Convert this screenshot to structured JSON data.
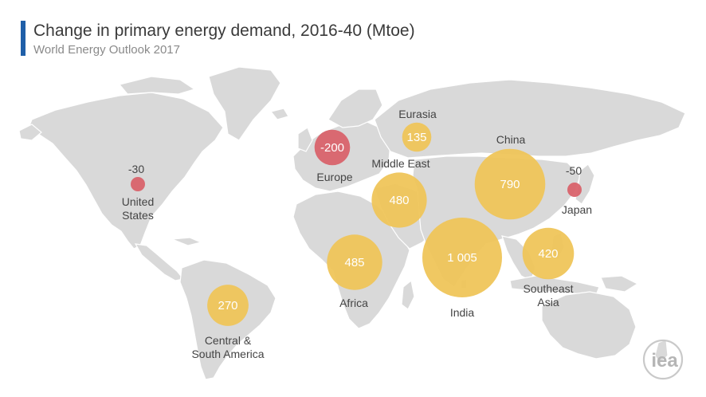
{
  "header": {
    "title": "Change in primary energy demand, 2016-40 (Mtoe)",
    "subtitle": "World Energy Outlook 2017"
  },
  "colors": {
    "increase": "#efc55a",
    "decrease": "#d9636b",
    "land": "#d9d9d9",
    "accent_bar": "#1f5fa8"
  },
  "map": {
    "regions": [
      {
        "id": "united-states",
        "value": "-30",
        "value_num": -30,
        "label_lines": [
          "United",
          "States"
        ],
        "kind": "decrease"
      },
      {
        "id": "central-south-america",
        "value": "270",
        "value_num": 270,
        "label_lines": [
          "Central &",
          "South America"
        ],
        "kind": "increase"
      },
      {
        "id": "europe",
        "value": "-200",
        "value_num": -200,
        "label_lines": [
          "Europe"
        ],
        "kind": "decrease"
      },
      {
        "id": "eurasia",
        "value": "135",
        "value_num": 135,
        "label_lines": [
          "Eurasia"
        ],
        "kind": "increase"
      },
      {
        "id": "middle-east",
        "value": "480",
        "value_num": 480,
        "label_lines": [
          "Middle East"
        ],
        "kind": "increase"
      },
      {
        "id": "africa",
        "value": "485",
        "value_num": 485,
        "label_lines": [
          "Africa"
        ],
        "kind": "increase"
      },
      {
        "id": "india",
        "value": "1 005",
        "value_num": 1005,
        "label_lines": [
          "India"
        ],
        "kind": "increase"
      },
      {
        "id": "china",
        "value": "790",
        "value_num": 790,
        "label_lines": [
          "China"
        ],
        "kind": "increase"
      },
      {
        "id": "southeast-asia",
        "value": "420",
        "value_num": 420,
        "label_lines": [
          "Southeast",
          "Asia"
        ],
        "kind": "increase"
      },
      {
        "id": "japan",
        "value": "-50",
        "value_num": -50,
        "label_lines": [
          "Japan"
        ],
        "kind": "decrease"
      }
    ]
  },
  "logo": {
    "text": "iea"
  }
}
